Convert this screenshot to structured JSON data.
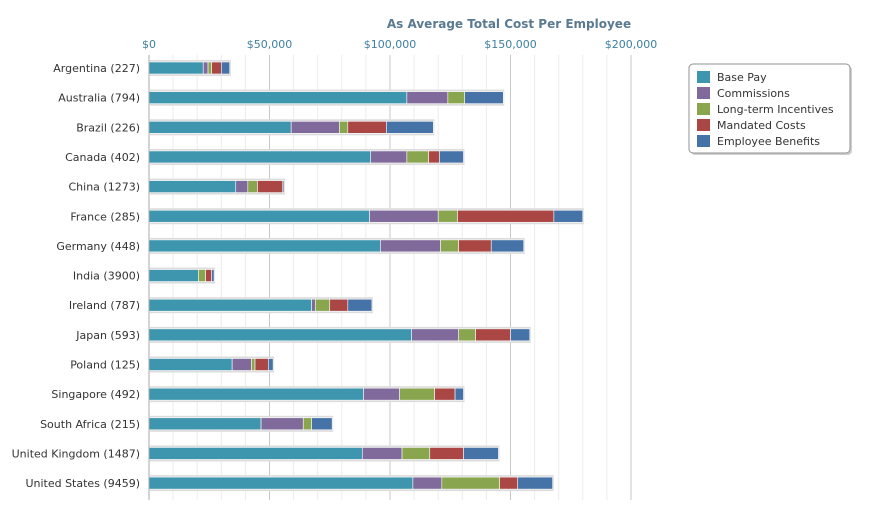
{
  "chart_data": {
    "type": "bar",
    "orientation": "horizontal",
    "stacked": true,
    "title": "As Average Total Cost Per Employee",
    "xlim": [
      0,
      200000
    ],
    "xticks": [
      0,
      50000,
      100000,
      150000,
      200000
    ],
    "xtick_labels": [
      "$0",
      "$50,000",
      "$100,000",
      "$150,000",
      "$200,000"
    ],
    "grid": true,
    "legend_position": "top-right",
    "categories": [
      "Argentina (227)",
      "Australia (794)",
      "Brazil (226)",
      "Canada (402)",
      "China (1273)",
      "France (285)",
      "Germany (448)",
      "India (3900)",
      "Ireland (787)",
      "Japan (593)",
      "Poland (125)",
      "Singapore (492)",
      "South Africa (215)",
      "United Kingdom (1487)",
      "United States (9459)"
    ],
    "series": [
      {
        "name": "Base Pay",
        "color": "#3d96ae",
        "values": [
          22500,
          107000,
          59000,
          92000,
          36000,
          91500,
          96000,
          20500,
          67500,
          109000,
          34500,
          89000,
          46500,
          88500,
          109500
        ]
      },
      {
        "name": "Commissions",
        "color": "#80699b",
        "values": [
          2000,
          17000,
          20000,
          15000,
          5000,
          28500,
          25000,
          0,
          1500,
          19500,
          8000,
          15000,
          17500,
          16500,
          12000
        ]
      },
      {
        "name": "Long-term Incentives",
        "color": "#89a54e",
        "values": [
          1500,
          7000,
          3500,
          9000,
          4000,
          8000,
          7500,
          3000,
          6000,
          7000,
          1500,
          14500,
          3500,
          11500,
          24000
        ]
      },
      {
        "name": "Mandated Costs",
        "color": "#aa4643",
        "values": [
          4000,
          0,
          16000,
          4500,
          10500,
          40000,
          13500,
          2500,
          7500,
          14500,
          5500,
          8500,
          0,
          14000,
          7500
        ]
      },
      {
        "name": "Employee Benefits",
        "color": "#4572a7",
        "values": [
          3500,
          16000,
          19500,
          10000,
          500,
          12000,
          13500,
          1000,
          10000,
          8000,
          2000,
          3500,
          8500,
          14500,
          14500
        ]
      }
    ]
  }
}
